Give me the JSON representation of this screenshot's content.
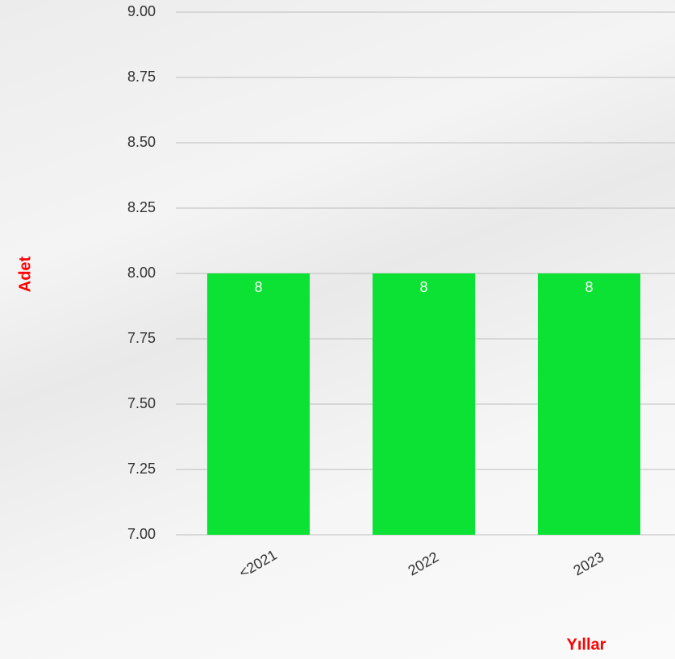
{
  "chart_data": {
    "type": "bar",
    "x_label": "Yıllar",
    "y_label": "Adet",
    "categories": [
      "<2021",
      "2022",
      "2023"
    ],
    "values": [
      8,
      8,
      8
    ],
    "color": "#0be234",
    "ylim": [
      7,
      9
    ],
    "yticks": [
      {
        "value": 7,
        "label": "7.00"
      },
      {
        "value": 7.25,
        "label": "7.25"
      },
      {
        "value": 7.5,
        "label": "7.50"
      },
      {
        "value": 7.75,
        "label": "7.75"
      },
      {
        "value": 8,
        "label": "8.00"
      },
      {
        "value": 8.25,
        "label": "8.25"
      },
      {
        "value": 8.5,
        "label": "8.50"
      },
      {
        "value": 8.75,
        "label": "8.75"
      },
      {
        "value": 9,
        "label": "9.00"
      }
    ],
    "grid": true
  }
}
